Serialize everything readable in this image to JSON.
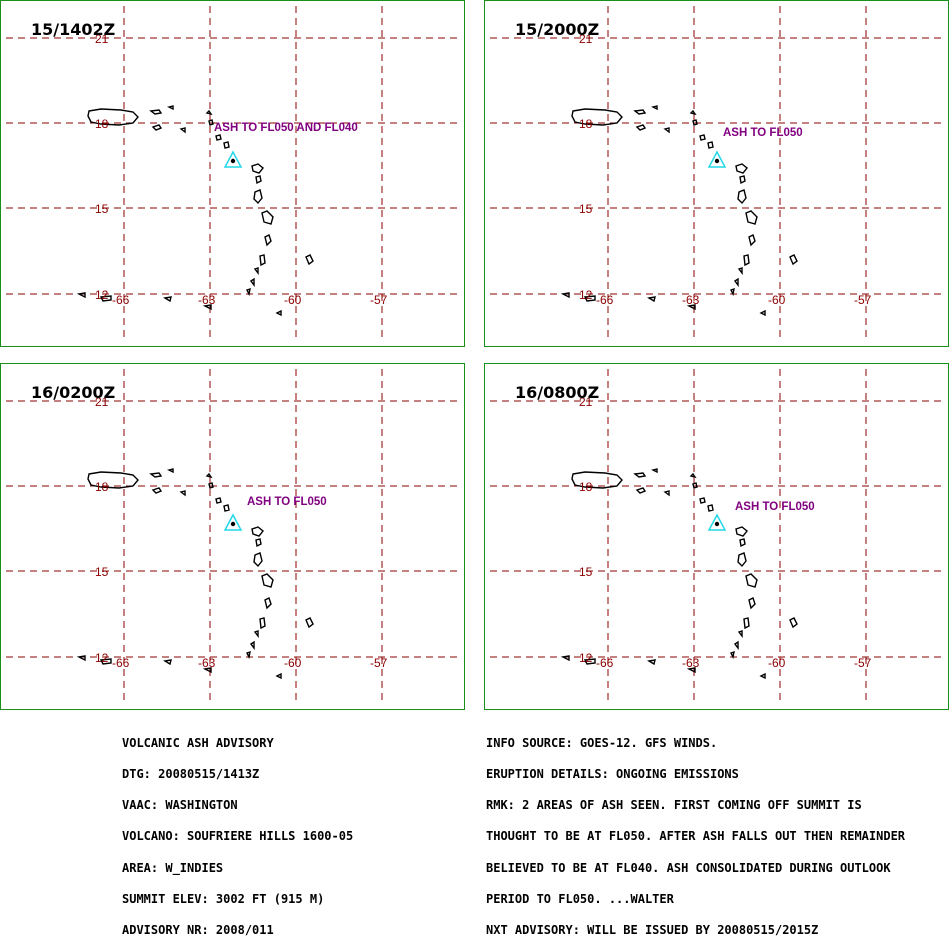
{
  "panels": [
    {
      "time": "15/1402Z",
      "ash_label": "ASH TO FL050 AND FL040",
      "ash_color": "#8b4513"
    },
    {
      "time": "15/2000Z",
      "ash_label": "ASH TO FL050",
      "ash_color": "#22dd22"
    },
    {
      "time": "16/0200Z",
      "ash_label": "ASH TO FL050",
      "ash_color": "#22d8e8"
    },
    {
      "time": "16/0800Z",
      "ash_label": "ASH TO FL050",
      "ash_color": "#e020e0"
    }
  ],
  "lat_labels": [
    "21",
    "18",
    "15",
    "12"
  ],
  "lon_labels": [
    "-66",
    "-63",
    "-60",
    "-57"
  ],
  "colors": {
    "grid": "#8b0000",
    "label": "#800080",
    "coast": "#000000",
    "volcano_marker": "#22d8e8",
    "panel_border": "#1a8f1a"
  },
  "advisory_left": [
    "VOLCANIC ASH ADVISORY",
    "DTG: 20080515/1413Z",
    "VAAC: WASHINGTON",
    "VOLCANO: SOUFRIERE HILLS 1600-05",
    "AREA: W_INDIES",
    "SUMMIT ELEV: 3002 FT (915 M)",
    "ADVISORY NR: 2008/011"
  ],
  "advisory_right": [
    "INFO SOURCE: GOES-12. GFS WINDS.",
    "ERUPTION DETAILS: ONGOING EMISSIONS",
    "RMK: 2 AREAS OF ASH SEEN. FIRST COMING OFF SUMMIT IS",
    "THOUGHT TO BE AT FL050. AFTER ASH FALLS OUT THEN REMAINDER",
    "BELIEVED TO BE AT FL040. ASH CONSOLIDATED DURING OUTLOOK",
    "PERIOD TO FL050. ...WALTER",
    "NXT ADVISORY: WILL BE ISSUED BY 20080515/2015Z"
  ]
}
